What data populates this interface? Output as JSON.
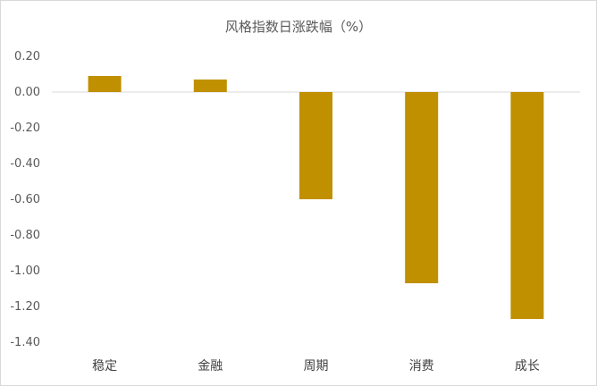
{
  "chart_data": {
    "type": "bar",
    "title": "风格指数日涨跌幅（%）",
    "categories": [
      "稳定",
      "金融",
      "周期",
      "消费",
      "成长"
    ],
    "series": [
      {
        "values": [
          0.09,
          0.07,
          -0.6,
          -1.07,
          -1.27
        ]
      }
    ],
    "ylim": [
      -1.4,
      0.2
    ],
    "yticks": [
      "0.20",
      "0.00",
      "-0.20",
      "-0.40",
      "-0.60",
      "-0.80",
      "-1.00",
      "-1.20",
      "-1.40"
    ],
    "grid": false,
    "bar_color": "#C09000",
    "axis_color": "#d9d9d9"
  }
}
